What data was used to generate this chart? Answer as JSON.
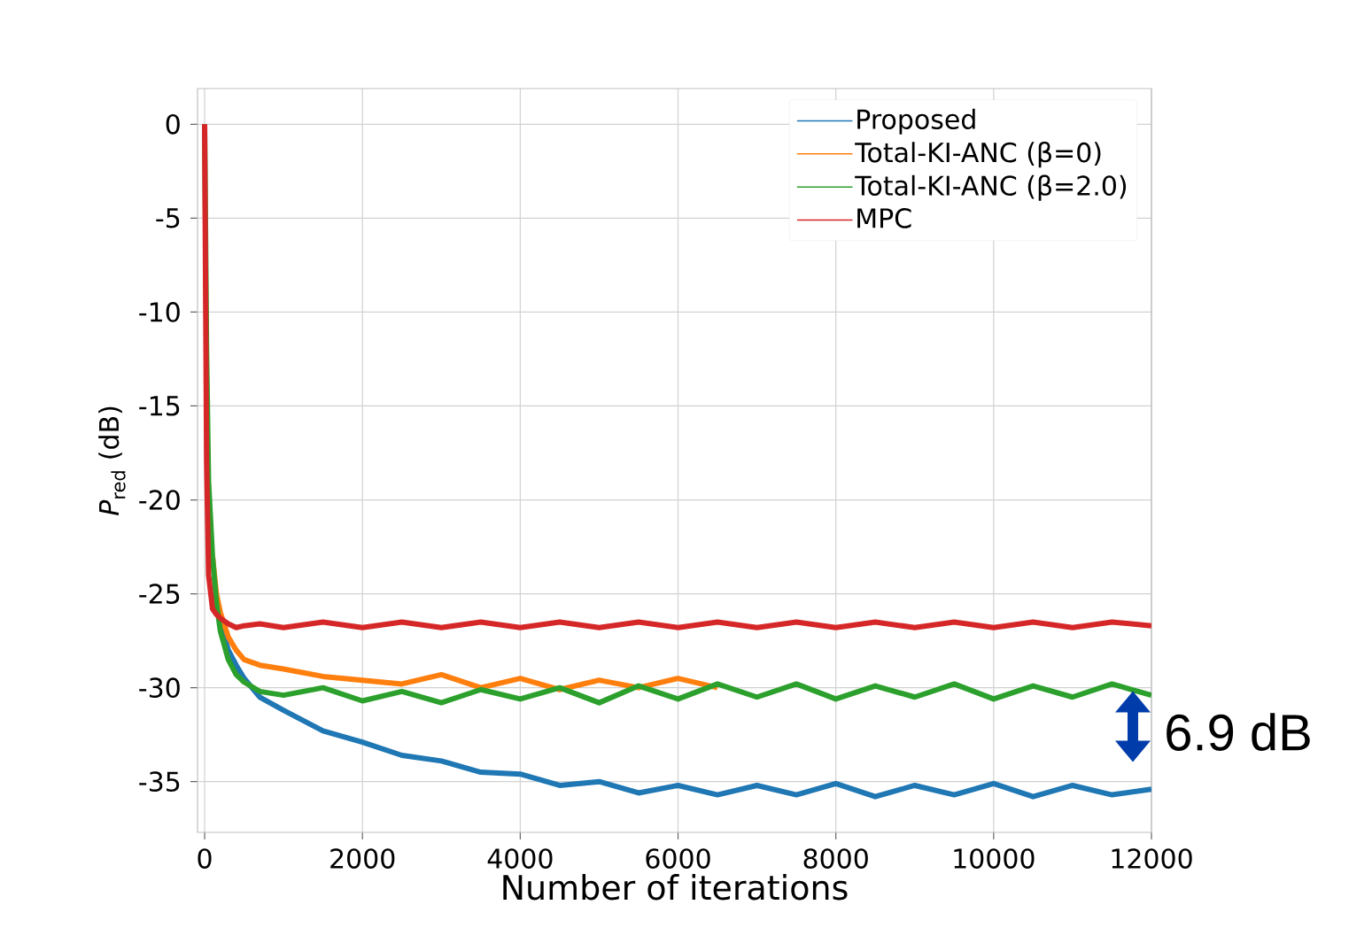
{
  "chart_data": {
    "type": "line",
    "xlabel": "Number of iterations",
    "ylabel": "*P*$_{red}$ (dB)",
    "x": [
      0,
      25,
      50,
      100,
      150,
      200,
      300,
      400,
      500,
      700,
      1000,
      1500,
      2000,
      2500,
      3000,
      3500,
      4000,
      4500,
      5000,
      5500,
      6000,
      6500,
      7000,
      7500,
      8000,
      8500,
      9000,
      9500,
      10000,
      10500,
      11000,
      11500,
      12000
    ],
    "series": [
      {
        "name": "Proposed",
        "color": "#1f77b4",
        "values": [
          null,
          null,
          null,
          null,
          null,
          -26.5,
          -28,
          -28.8,
          -29.5,
          -30.5,
          -31.2,
          -32.3,
          -32.9,
          -33.6,
          -33.9,
          -34.5,
          -34.6,
          -35.2,
          -35,
          -35.6,
          -35.2,
          -35.7,
          -35.2,
          -35.7,
          -35.1,
          -35.8,
          -35.2,
          -35.7,
          -35.1,
          -35.8,
          -35.2,
          -35.7,
          -35.4
        ]
      },
      {
        "name": "Total-KI-ANC (β=0)",
        "color": "#ff7f0e",
        "values": [
          null,
          null,
          null,
          -23,
          -25,
          -26,
          -27.3,
          -28,
          -28.5,
          -28.8,
          -29,
          -29.4,
          -29.6,
          -29.8,
          -29.3,
          -30,
          -29.5,
          -30.1,
          -29.6,
          -30,
          -29.5,
          -30,
          null,
          null,
          null,
          null,
          null,
          null,
          null,
          null,
          null,
          null,
          null
        ]
      },
      {
        "name": "Total-KI-ANC (β=2.0)",
        "color": "#2ca02c",
        "values": [
          0,
          -12,
          -19,
          -23,
          -25.5,
          -27,
          -28.5,
          -29.3,
          -29.7,
          -30.2,
          -30.4,
          -30,
          -30.7,
          -30.2,
          -30.8,
          -30.1,
          -30.6,
          -30,
          -30.8,
          -29.9,
          -30.6,
          -29.8,
          -30.5,
          -29.8,
          -30.6,
          -29.9,
          -30.5,
          -29.8,
          -30.6,
          -29.9,
          -30.5,
          -29.8,
          -30.4
        ]
      },
      {
        "name": "MPC",
        "color": "#d62728",
        "values": [
          0,
          -18,
          -24,
          -25.8,
          -26.1,
          -26.3,
          -26.6,
          -26.8,
          -26.7,
          -26.6,
          -26.8,
          -26.5,
          -26.8,
          -26.5,
          -26.8,
          -26.5,
          -26.8,
          -26.5,
          -26.8,
          -26.5,
          -26.8,
          -26.5,
          -26.8,
          -26.5,
          -26.8,
          -26.5,
          -26.8,
          -26.5,
          -26.8,
          -26.5,
          -26.8,
          -26.5,
          -26.7
        ]
      }
    ],
    "xlim": [
      -90,
      12000
    ],
    "ylim": [
      -37.7,
      1.9
    ],
    "xticks": [
      0,
      2000,
      4000,
      6000,
      8000,
      10000,
      12000
    ],
    "yticks": [
      0,
      -5,
      -10,
      -15,
      -20,
      -25,
      -30,
      -35
    ],
    "grid": true,
    "legend": "top right",
    "line_style": "solid",
    "marker": "none",
    "annotations": [
      "6.9 dB"
    ]
  }
}
